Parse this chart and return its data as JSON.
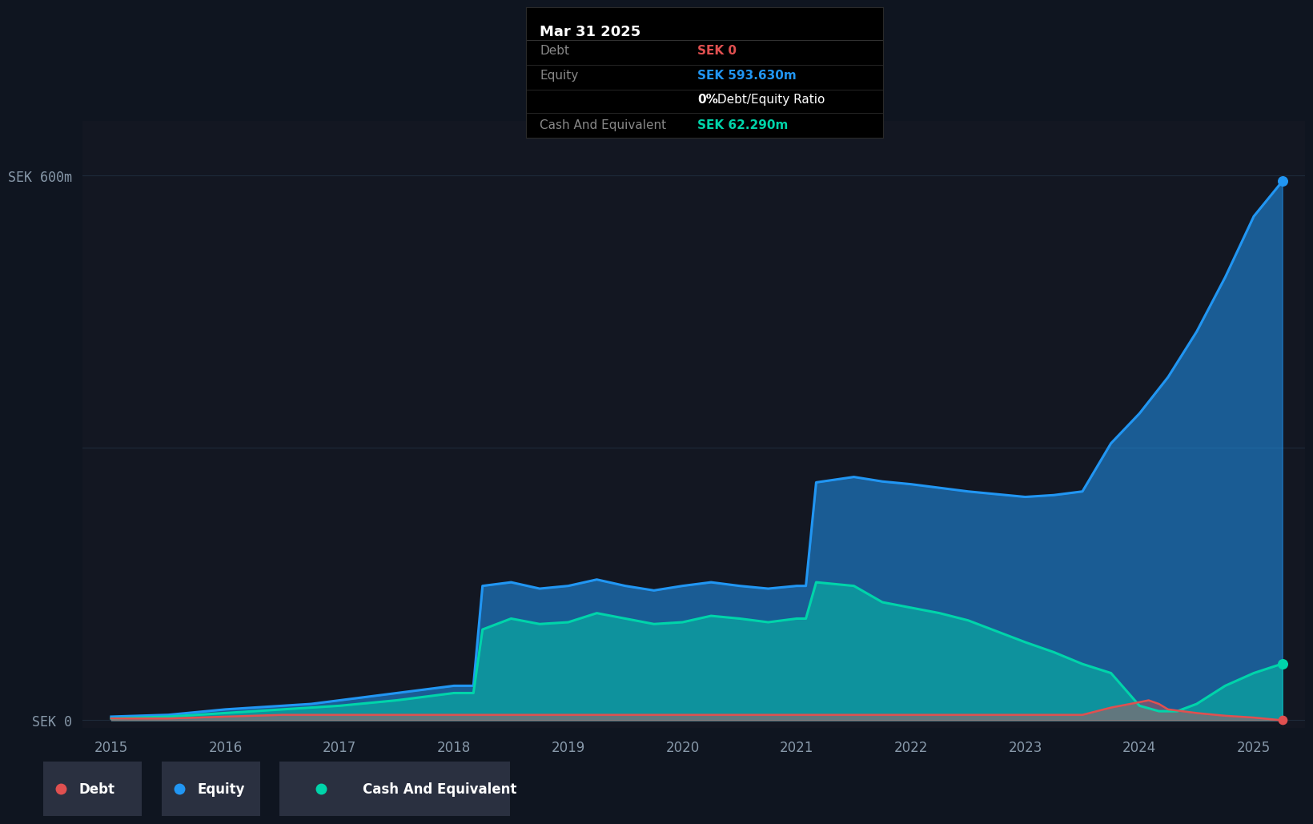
{
  "background_color": "#131722",
  "plot_bg_color": "#131722",
  "outer_bg_color": "#0f1520",
  "grid_color": "#1e2a3a",
  "series": {
    "equity": {
      "color": "#2196f3",
      "fill_alpha": 0.55,
      "label": "Equity",
      "dates": [
        2015.0,
        2015.5,
        2016.0,
        2016.25,
        2016.5,
        2016.75,
        2017.0,
        2017.5,
        2018.0,
        2018.17,
        2018.25,
        2018.5,
        2018.75,
        2019.0,
        2019.25,
        2019.5,
        2019.75,
        2020.0,
        2020.25,
        2020.5,
        2020.75,
        2021.0,
        2021.08,
        2021.17,
        2021.5,
        2021.75,
        2022.0,
        2022.25,
        2022.5,
        2022.75,
        2023.0,
        2023.25,
        2023.5,
        2023.75,
        2024.0,
        2024.25,
        2024.5,
        2024.75,
        2025.0,
        2025.25
      ],
      "values": [
        4,
        6,
        12,
        14,
        16,
        18,
        22,
        30,
        38,
        38,
        148,
        152,
        145,
        148,
        155,
        148,
        143,
        148,
        152,
        148,
        145,
        148,
        148,
        262,
        268,
        263,
        260,
        256,
        252,
        249,
        246,
        248,
        252,
        305,
        338,
        378,
        428,
        488,
        555,
        593.63
      ]
    },
    "cash": {
      "color": "#00d4aa",
      "fill_alpha": 0.45,
      "label": "Cash And Equivalent",
      "dates": [
        2015.0,
        2015.5,
        2016.0,
        2016.5,
        2017.0,
        2017.5,
        2018.0,
        2018.17,
        2018.25,
        2018.5,
        2018.75,
        2019.0,
        2019.25,
        2019.5,
        2019.75,
        2020.0,
        2020.25,
        2020.5,
        2020.75,
        2021.0,
        2021.08,
        2021.17,
        2021.5,
        2021.75,
        2022.0,
        2022.25,
        2022.5,
        2022.75,
        2023.0,
        2023.25,
        2023.5,
        2023.75,
        2024.0,
        2024.17,
        2024.33,
        2024.5,
        2024.75,
        2025.0,
        2025.25
      ],
      "values": [
        2,
        4,
        8,
        12,
        16,
        22,
        30,
        30,
        100,
        112,
        106,
        108,
        118,
        112,
        106,
        108,
        115,
        112,
        108,
        112,
        112,
        152,
        148,
        130,
        124,
        118,
        110,
        98,
        86,
        75,
        62,
        52,
        16,
        10,
        10,
        18,
        38,
        52,
        62.29
      ]
    },
    "debt": {
      "color": "#e05050",
      "fill_alpha": 0.4,
      "label": "Debt",
      "dates": [
        2015.0,
        2015.5,
        2016.0,
        2016.5,
        2017.0,
        2017.5,
        2018.0,
        2018.5,
        2019.0,
        2019.5,
        2020.0,
        2020.5,
        2021.0,
        2021.5,
        2022.0,
        2022.5,
        2023.0,
        2023.5,
        2023.75,
        2024.0,
        2024.08,
        2024.17,
        2024.25,
        2024.5,
        2024.75,
        2025.0,
        2025.25
      ],
      "values": [
        2,
        2,
        4,
        6,
        6,
        6,
        6,
        6,
        6,
        6,
        6,
        6,
        6,
        6,
        6,
        6,
        6,
        6,
        14,
        20,
        22,
        18,
        12,
        8,
        5,
        3,
        0
      ]
    }
  },
  "ylim": [
    -8,
    660
  ],
  "xlim": [
    2014.75,
    2025.45
  ],
  "yticks": [
    0,
    300,
    600
  ],
  "ytick_labels": [
    "SEK 0",
    "",
    "SEK 600m"
  ],
  "xticks": [
    2015,
    2016,
    2017,
    2018,
    2019,
    2020,
    2021,
    2022,
    2023,
    2024,
    2025
  ],
  "xtick_labels": [
    "2015",
    "2016",
    "2017",
    "2018",
    "2019",
    "2020",
    "2021",
    "2022",
    "2023",
    "2024",
    "2025"
  ],
  "tooltip": {
    "date": "Mar 31 2025",
    "debt_label": "Debt",
    "debt_value": "SEK 0",
    "debt_color": "#e05050",
    "equity_label": "Equity",
    "equity_value": "SEK 593.630m",
    "equity_color": "#2196f3",
    "ratio_value": "0%",
    "ratio_text": " Debt/Equity Ratio",
    "cash_label": "Cash And Equivalent",
    "cash_value": "SEK 62.290m",
    "cash_color": "#00d4aa"
  },
  "legend_items": [
    {
      "label": "Debt",
      "color": "#e05050"
    },
    {
      "label": "Equity",
      "color": "#2196f3"
    },
    {
      "label": "Cash And Equivalent",
      "color": "#00d4aa"
    }
  ],
  "dot_x": 2025.25,
  "dot_equity": 593.63,
  "dot_cash": 62.29,
  "dot_debt": 0
}
